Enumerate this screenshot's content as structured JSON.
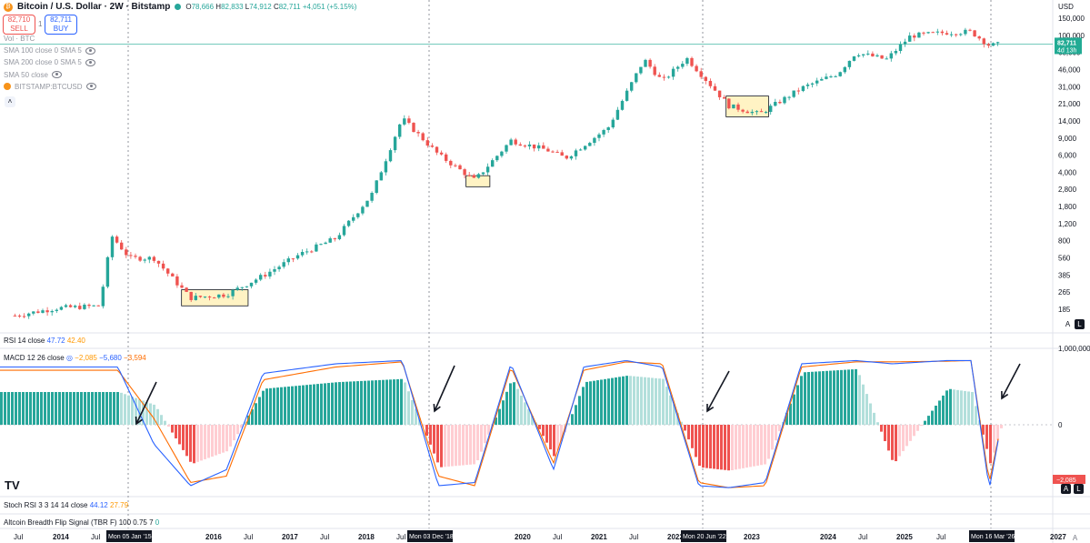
{
  "header": {
    "symbol_title": "Bitcoin / U.S. Dollar · 2W · Bitstamp",
    "open_label": "O",
    "open": "78,666",
    "high_label": "H",
    "high": "82,833",
    "low_label": "L",
    "low": "74,912",
    "close_label": "C",
    "close": "82,711",
    "change": "+4,051 (+5.15%)",
    "sell_price": "82,710",
    "sell_label": "SELL",
    "spread": "1",
    "buy_price": "82,711",
    "buy_label": "BUY",
    "collapse_icon": "chevron-up-icon"
  },
  "indicators": [
    {
      "label": "Vol · BTC",
      "eye": false
    },
    {
      "label": "SMA 100 close 0 SMA 5",
      "eye": true
    },
    {
      "label": "SMA 200 close 0 SMA 5",
      "eye": true
    },
    {
      "label": "SMA 50 close",
      "eye": true
    },
    {
      "label": "BITSTAMP:BTCUSD",
      "eye": true
    }
  ],
  "price_axis": {
    "currency": "USD",
    "labels": [
      "150,000",
      "100,000",
      "68,000",
      "46,000",
      "31,000",
      "21,000",
      "14,000",
      "9,000",
      "6,000",
      "4,000",
      "2,800",
      "1,800",
      "1,200",
      "800",
      "560",
      "385",
      "265",
      "185"
    ],
    "last_price": "82,711",
    "countdown": "4d 13h"
  },
  "rsi": {
    "label": "RSI 14 close",
    "v1": "47.72",
    "v2": "42.40"
  },
  "macd": {
    "label": "MACD 12 26 close",
    "v_hist": "−2,085",
    "v_macd": "−5,680",
    "v_signal": "−3,594",
    "axis_top": "1,000,000",
    "axis_zero": "0",
    "axis_current": "−2,085"
  },
  "stoch": {
    "label": "Stoch RSI 3 3 14 14 close",
    "v1": "44.12",
    "v2": "27.79"
  },
  "tbrf": {
    "label": "Altcoin Breadth Flip Signal (TBR F) 100 0.75 7",
    "v": "0"
  },
  "time_axis": {
    "labels": [
      "Jul",
      "2014",
      "Jul",
      "2016",
      "Jul",
      "2017",
      "Jul",
      "2018",
      "Jul",
      "2020",
      "Jul",
      "2021",
      "Jul",
      "2022",
      "2023",
      "2024",
      "Jul",
      "2025",
      "Jul",
      "2026",
      "2027"
    ],
    "markers": [
      "Mon 05 Jan '15",
      "Mon 03 Dec '18",
      "Mon 20 Jun '22",
      "Mon 16 Mar '26"
    ]
  },
  "scale_buttons": {
    "auto": "A",
    "log": "L"
  },
  "colors": {
    "up": "#26a69a",
    "down": "#ef5350",
    "up_light": "#b2dfdb",
    "down_light": "#ffcdd2",
    "macd": "#2962ff",
    "signal": "#ff6d00",
    "box_fill": "#fff3c4",
    "last_price": "#22ab94"
  },
  "chart_data": [
    {
      "type": "candlestick",
      "title": "Bitcoin / U.S. Dollar · 2W · Bitstamp",
      "y_scale": "log",
      "ylim": [
        150,
        150000
      ],
      "xlim": [
        "2012-06-01",
        "2027-06-01"
      ],
      "series": [
        {
          "name": "BTCUSD",
          "x": [
            "2012-08",
            "2013-03",
            "2013-10",
            "2013-12",
            "2014-03",
            "2014-07",
            "2015-01",
            "2015-07",
            "2016-01",
            "2016-07",
            "2017-01",
            "2017-07",
            "2017-12",
            "2018-06",
            "2018-12",
            "2019-06",
            "2019-12",
            "2020-03",
            "2020-10",
            "2021-04",
            "2021-07",
            "2021-11",
            "2022-06",
            "2022-11",
            "2023-06",
            "2023-12",
            "2024-03",
            "2024-08",
            "2024-12",
            "2025-06",
            "2025-10",
            "2026-01",
            "2026-03"
          ],
          "y": [
            160,
            190,
            200,
            1000,
            600,
            600,
            240,
            260,
            400,
            650,
            950,
            2600,
            15000,
            6500,
            3600,
            9000,
            7200,
            6000,
            12000,
            58000,
            35000,
            60000,
            20000,
            16500,
            30000,
            42000,
            68000,
            58000,
            100000,
            108000,
            110000,
            80000,
            82711
          ]
        }
      ],
      "zones": [
        {
          "from": "2014-12",
          "to": "2015-11",
          "low": 200,
          "high": 290
        },
        {
          "from": "2018-11",
          "to": "2019-03",
          "low": 3100,
          "high": 4000
        },
        {
          "from": "2022-06",
          "to": "2023-01",
          "low": 15500,
          "high": 25000
        }
      ]
    },
    {
      "type": "bar",
      "title": "MACD 12 26 close",
      "ylim": [
        -1000000,
        1000000
      ],
      "series": [
        {
          "name": "Histogram",
          "x": [
            "2014-01",
            "2014-07",
            "2015-01",
            "2015-07",
            "2016-01",
            "2017-01",
            "2017-12",
            "2018-06",
            "2018-12",
            "2019-06",
            "2020-01",
            "2020-06",
            "2021-01",
            "2021-07",
            "2022-01",
            "2022-06",
            "2022-12",
            "2023-06",
            "2024-03",
            "2024-09",
            "2025-06",
            "2025-10",
            "2026-01",
            "2026-03"
          ],
          "y": [
            500000,
            300000,
            -600000,
            -400000,
            550000,
            650000,
            700000,
            -650000,
            -600000,
            700000,
            -500000,
            650000,
            750000,
            700000,
            -650000,
            -700000,
            -600000,
            800000,
            850000,
            -600000,
            550000,
            500000,
            -600000,
            -2085
          ]
        },
        {
          "name": "MACD",
          "y": [
            900000,
            -300000,
            -950000,
            -700000,
            800000,
            950000,
            1000000,
            -950000,
            -900000,
            950000,
            -700000,
            900000,
            1000000,
            900000,
            -950000,
            -980000,
            -900000,
            950000,
            1000000,
            950000,
            1000000,
            1000000,
            -1000000,
            -5680
          ]
        },
        {
          "name": "Signal",
          "y": [
            850000,
            100000,
            -900000,
            -800000,
            700000,
            900000,
            980000,
            -800000,
            -950000,
            900000,
            -600000,
            850000,
            980000,
            950000,
            -900000,
            -980000,
            -950000,
            900000,
            980000,
            980000,
            990000,
            1000000,
            -900000,
            -3594
          ]
        }
      ]
    }
  ]
}
